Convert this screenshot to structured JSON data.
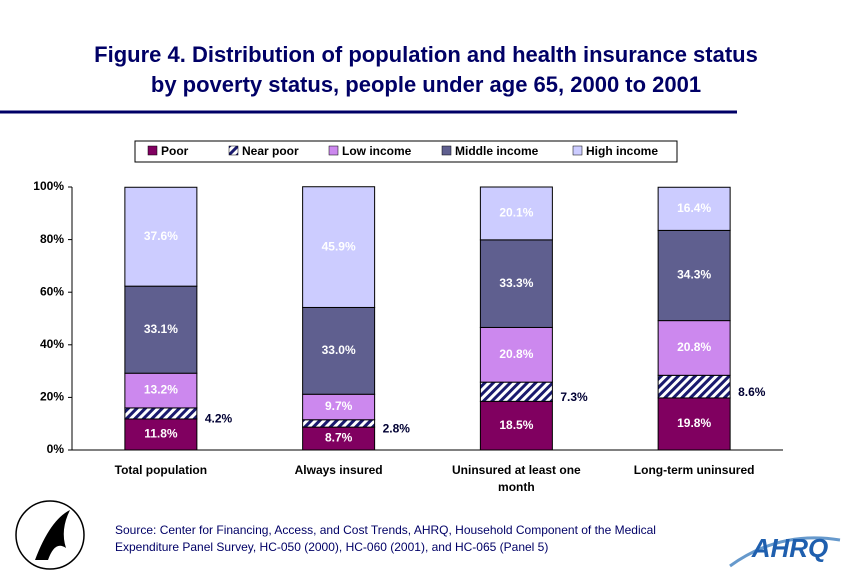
{
  "chart_data": {
    "type": "stacked-bar",
    "title": "Figure 4. Distribution of population and health insurance status",
    "subtitle": "by poverty status, people under age 65, 2000 to 2001",
    "categories": [
      "Total population",
      "Always insured",
      "Uninsured at least one month",
      "Long-term uninsured"
    ],
    "series": [
      {
        "name": "Poor",
        "color": "#800060",
        "values": [
          11.8,
          8.7,
          18.5,
          19.8
        ],
        "value_labels": [
          "11.8%",
          "8.7%",
          "18.5%",
          "19.8%"
        ]
      },
      {
        "name": "Near poor",
        "color": "#1a1a6e",
        "hatch": true,
        "values": [
          4.2,
          2.8,
          7.3,
          8.6
        ],
        "value_labels": [
          "4.2%",
          "2.8%",
          "7.3%",
          "8.6%"
        ]
      },
      {
        "name": "Low income",
        "color": "#cc88ee",
        "values": [
          13.2,
          9.7,
          20.8,
          20.8
        ],
        "value_labels": [
          "13.2%",
          "9.7%",
          "20.8%",
          "20.8%"
        ]
      },
      {
        "name": "Middle income",
        "color": "#5f5f8f",
        "values": [
          33.1,
          33.0,
          33.3,
          34.3
        ],
        "value_labels": [
          "33.1%",
          "33.0%",
          "33.3%",
          "34.3%"
        ]
      },
      {
        "name": "High income",
        "color": "#ccccff",
        "values": [
          37.6,
          45.9,
          20.1,
          16.4
        ],
        "value_labels": [
          "37.6%",
          "45.9%",
          "20.1%",
          "16.4%"
        ]
      }
    ],
    "ylim": [
      0,
      100
    ],
    "yticks": [
      {
        "value": 0,
        "label": "0%"
      },
      {
        "value": 20,
        "label": "20%"
      },
      {
        "value": 40,
        "label": "40%"
      },
      {
        "value": 60,
        "label": "60%"
      },
      {
        "value": 80,
        "label": "80%"
      },
      {
        "value": 100,
        "label": "100%"
      }
    ],
    "legend": "top",
    "source": [
      "Source: Center for Financing, Access, and Cost Trends, AHRQ, Household Component of the Medical",
      "Expenditure Panel Survey, HC-050 (2000), HC-060 (2001), and HC-065 (Panel 5)"
    ],
    "logo_text": "AHRQ"
  }
}
